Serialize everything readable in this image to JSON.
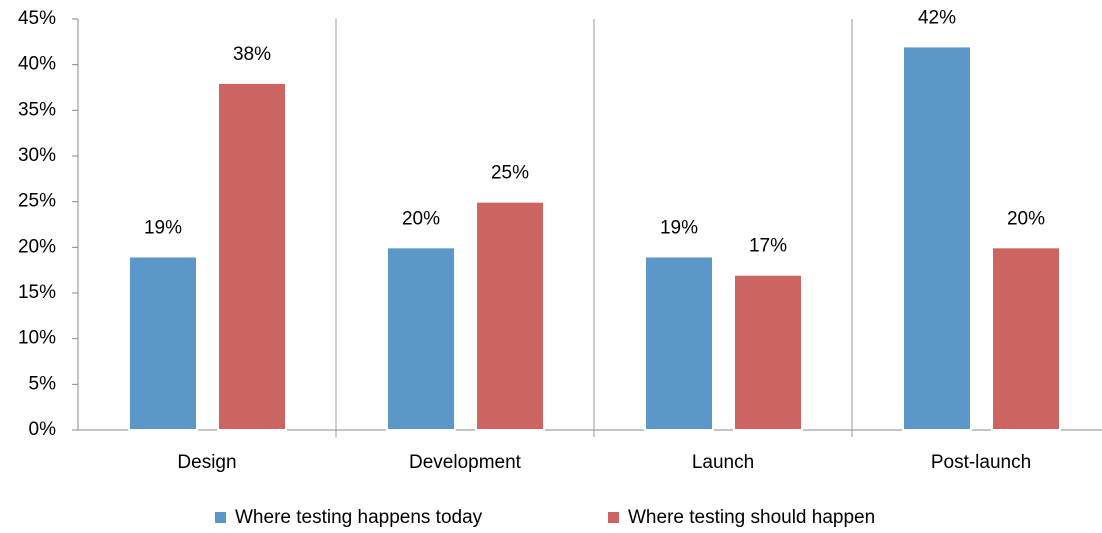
{
  "chart_data": {
    "type": "bar",
    "categories": [
      "Design",
      "Development",
      "Launch",
      "Post-launch"
    ],
    "series": [
      {
        "name": "Where testing happens today",
        "color": "#5b97c9",
        "values": [
          19,
          20,
          19,
          42
        ],
        "value_labels": [
          "19%",
          "20%",
          "19%",
          "42%"
        ]
      },
      {
        "name": "Where testing should happen",
        "color": "#cc6461",
        "values": [
          38,
          25,
          17,
          20
        ],
        "value_labels": [
          "38%",
          "25%",
          "17%",
          "20%"
        ]
      }
    ],
    "ylim": [
      0,
      45
    ],
    "yticks": [
      {
        "value": 0,
        "label": "0%"
      },
      {
        "value": 5,
        "label": "5%"
      },
      {
        "value": 10,
        "label": "10%"
      },
      {
        "value": 15,
        "label": "15%"
      },
      {
        "value": 20,
        "label": "20%"
      },
      {
        "value": 25,
        "label": "25%"
      },
      {
        "value": 30,
        "label": "30%"
      },
      {
        "value": 35,
        "label": "35%"
      },
      {
        "value": 40,
        "label": "40%"
      },
      {
        "value": 45,
        "label": "45%"
      }
    ],
    "legend": "bottom"
  }
}
